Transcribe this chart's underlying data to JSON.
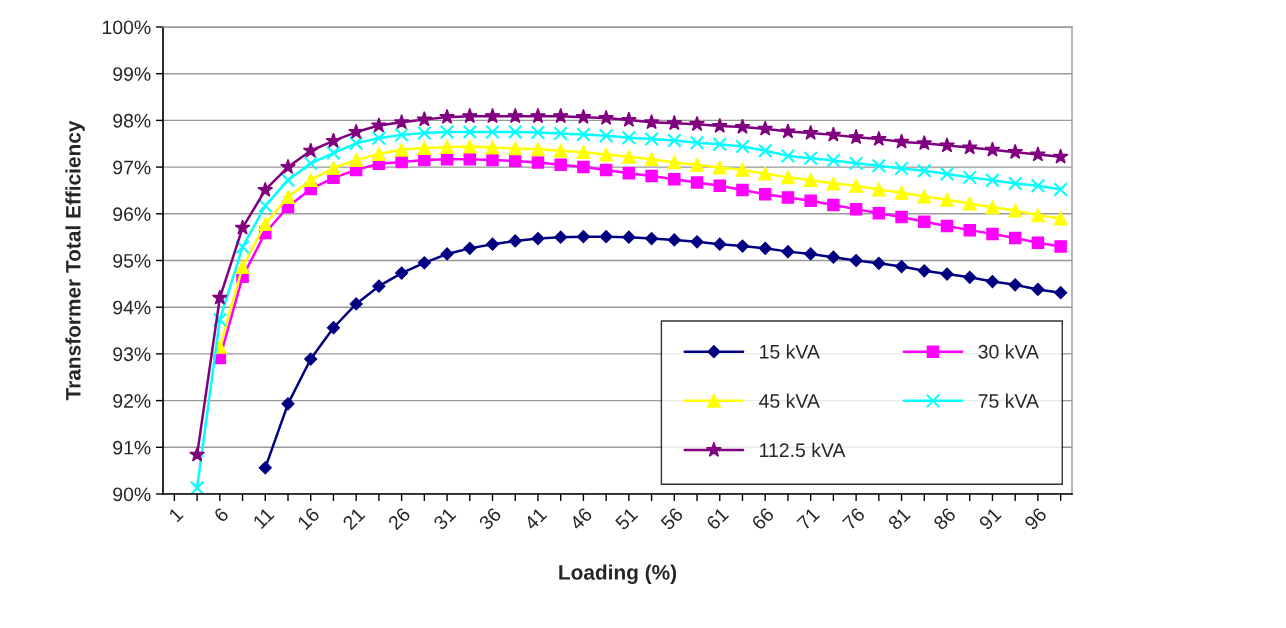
{
  "chart_data": {
    "type": "line",
    "xlabel": "Loading (%)",
    "ylabel": "Transformer Total Efficiency",
    "categories": [
      "1",
      null,
      "6",
      null,
      "11",
      null,
      "16",
      null,
      "21",
      null,
      "26",
      null,
      "31",
      null,
      "36",
      null,
      "41",
      null,
      "46",
      null,
      "51",
      null,
      "56",
      null,
      "61",
      null,
      "66",
      null,
      "71",
      null,
      "76",
      null,
      "81",
      null,
      "86",
      null,
      "91",
      null,
      "96",
      null
    ],
    "ylim": [
      90,
      100
    ],
    "yticks": [
      {
        "value": 90,
        "label": "90%"
      },
      {
        "value": 91,
        "label": "91%"
      },
      {
        "value": 92,
        "label": "92%"
      },
      {
        "value": 93,
        "label": "93%"
      },
      {
        "value": 94,
        "label": "94%"
      },
      {
        "value": 95,
        "label": "95%"
      },
      {
        "value": 96,
        "label": "96%"
      },
      {
        "value": 97,
        "label": "97%"
      },
      {
        "value": 98,
        "label": "98%"
      },
      {
        "value": 99,
        "label": "99%"
      },
      {
        "value": 100,
        "label": "100%"
      }
    ],
    "grid": "y",
    "legend": "bottom right",
    "series": [
      {
        "name": "15 kVA",
        "color": "#000080",
        "marker": "diamond",
        "values": [
          null,
          null,
          null,
          null,
          90.56,
          91.93,
          92.89,
          93.56,
          94.07,
          94.45,
          94.73,
          94.95,
          95.14,
          95.26,
          95.35,
          95.42,
          95.47,
          95.5,
          95.51,
          95.51,
          95.5,
          95.47,
          95.44,
          95.4,
          95.35,
          95.31,
          95.26,
          95.19,
          95.14,
          95.07,
          95.0,
          94.94,
          94.87,
          94.78,
          94.71,
          94.64,
          94.55,
          94.48,
          94.38,
          94.31
        ]
      },
      {
        "name": "30 kVA",
        "color": "#ff00ff",
        "marker": "square",
        "values": [
          null,
          null,
          92.91,
          94.65,
          95.59,
          96.15,
          96.53,
          96.77,
          96.94,
          97.07,
          97.11,
          97.15,
          97.17,
          97.17,
          97.15,
          97.13,
          97.1,
          97.05,
          97.0,
          96.94,
          96.87,
          96.81,
          96.74,
          96.67,
          96.6,
          96.51,
          96.42,
          96.35,
          96.28,
          96.19,
          96.1,
          96.01,
          95.93,
          95.83,
          95.74,
          95.65,
          95.57,
          95.48,
          95.38,
          95.3
        ]
      },
      {
        "name": "45 kVA",
        "color": "#ffff00",
        "marker": "triangle",
        "values": [
          null,
          null,
          93.15,
          94.86,
          95.78,
          96.36,
          96.72,
          96.98,
          97.15,
          97.28,
          97.37,
          97.41,
          97.43,
          97.44,
          97.42,
          97.4,
          97.38,
          97.35,
          97.32,
          97.27,
          97.22,
          97.17,
          97.1,
          97.05,
          96.99,
          96.94,
          96.86,
          96.78,
          96.72,
          96.65,
          96.6,
          96.52,
          96.45,
          96.37,
          96.3,
          96.22,
          96.14,
          96.07,
          95.97,
          95.9
        ]
      },
      {
        "name": "75 kVA",
        "color": "#00ffff",
        "marker": "cross",
        "values": [
          null,
          90.13,
          93.73,
          95.29,
          96.17,
          96.72,
          97.08,
          97.3,
          97.51,
          97.62,
          97.69,
          97.73,
          97.75,
          97.75,
          97.75,
          97.75,
          97.74,
          97.72,
          97.7,
          97.67,
          97.63,
          97.6,
          97.57,
          97.52,
          97.49,
          97.44,
          97.35,
          97.24,
          97.19,
          97.14,
          97.08,
          97.03,
          96.97,
          96.92,
          96.85,
          96.78,
          96.72,
          96.65,
          96.6,
          96.52
        ]
      },
      {
        "name": "112.5 kVA",
        "color": "#800080",
        "marker": "star",
        "values": [
          null,
          90.84,
          94.2,
          95.7,
          96.51,
          97.0,
          97.35,
          97.56,
          97.75,
          97.89,
          97.96,
          98.02,
          98.07,
          98.09,
          98.09,
          98.09,
          98.09,
          98.09,
          98.07,
          98.05,
          98.01,
          97.96,
          97.94,
          97.92,
          97.88,
          97.86,
          97.82,
          97.76,
          97.73,
          97.69,
          97.64,
          97.6,
          97.54,
          97.51,
          97.46,
          97.42,
          97.37,
          97.32,
          97.27,
          97.22
        ]
      }
    ]
  }
}
